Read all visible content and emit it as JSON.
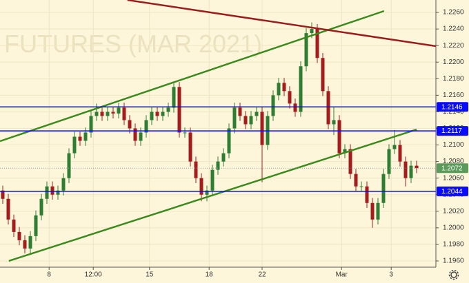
{
  "chart_data": {
    "type": "candlestick",
    "watermark": "FUTURES (MAR 2021)",
    "up_color": "#2e7d32",
    "down_color": "#a51c1c",
    "open": [
      1.2045,
      1.2035,
      1.201,
      1.1995,
      1.1985,
      1.1975,
      1.199,
      1.2015,
      1.2035,
      1.205,
      1.204,
      1.2045,
      1.206,
      1.209,
      1.211,
      1.2105,
      1.2115,
      1.2135,
      1.214,
      1.2135,
      1.214,
      1.2138,
      1.2145,
      1.213,
      1.212,
      1.2105,
      1.2115,
      1.213,
      1.214,
      1.2135,
      1.214,
      1.2145,
      1.217,
      1.2115,
      1.2115,
      1.208,
      1.206,
      1.204,
      1.2045,
      1.207,
      1.208,
      1.209,
      1.212,
      1.2145,
      1.2135,
      1.2125,
      1.2135,
      1.214,
      1.21,
      1.2135,
      1.216,
      1.2175,
      1.2165,
      1.215,
      1.214,
      1.2195,
      1.2235,
      1.224,
      1.2205,
      1.2165,
      1.2125,
      1.213,
      1.209,
      1.2095,
      1.2065,
      1.205,
      1.205,
      1.203,
      1.201,
      1.203,
      1.2065,
      1.2095,
      1.21,
      1.208,
      1.206,
      1.2075
    ],
    "high": [
      1.2051,
      1.2041,
      1.2016,
      1.2001,
      1.1991,
      1.1996,
      1.2021,
      1.2041,
      1.2056,
      1.2056,
      1.2051,
      1.2066,
      1.2096,
      1.2116,
      1.2116,
      1.2121,
      1.2141,
      1.215,
      1.2146,
      1.2146,
      1.2146,
      1.2151,
      1.2151,
      1.2136,
      1.2126,
      1.2121,
      1.2136,
      1.2146,
      1.2146,
      1.2146,
      1.2151,
      1.2176,
      1.2176,
      1.2121,
      1.2121,
      1.2086,
      1.2066,
      1.2051,
      1.2076,
      1.2086,
      1.2096,
      1.2126,
      1.2151,
      1.2151,
      1.2141,
      1.2141,
      1.2146,
      1.2146,
      1.2141,
      1.2166,
      1.2181,
      1.2181,
      1.2171,
      1.2156,
      1.2201,
      1.2241,
      1.2248,
      1.2246,
      1.2211,
      1.2171,
      1.2146,
      1.2136,
      1.2101,
      1.2101,
      1.2071,
      1.2056,
      1.2056,
      1.2036,
      1.2036,
      1.2071,
      1.2101,
      1.2118,
      1.2106,
      1.2086,
      1.2081,
      1.2081
    ],
    "low": [
      1.2029,
      1.2004,
      1.1989,
      1.1979,
      1.1969,
      1.1969,
      1.1984,
      1.2009,
      1.2029,
      1.2034,
      1.2034,
      1.2039,
      1.2054,
      1.2084,
      1.2099,
      1.2099,
      1.2109,
      1.2129,
      1.2129,
      1.2129,
      1.2132,
      1.2132,
      1.2124,
      1.2114,
      1.2099,
      1.2099,
      1.2109,
      1.2124,
      1.2129,
      1.2129,
      1.2134,
      1.2139,
      1.2109,
      1.2109,
      1.2074,
      1.2054,
      1.2032,
      1.2032,
      1.2039,
      1.2064,
      1.2074,
      1.2084,
      1.2114,
      1.2129,
      1.2119,
      1.2119,
      1.2129,
      1.2055,
      1.2094,
      1.2129,
      1.2154,
      1.2159,
      1.2144,
      1.2134,
      1.2134,
      1.2189,
      1.2229,
      1.2199,
      1.2159,
      1.2119,
      1.2112,
      1.2084,
      1.2084,
      1.2059,
      1.2044,
      1.2044,
      1.2024,
      1.2,
      1.2004,
      1.2024,
      1.2059,
      1.2089,
      1.2074,
      1.205,
      1.2054,
      1.2066
    ],
    "close": [
      1.2035,
      1.201,
      1.1995,
      1.1985,
      1.1975,
      1.199,
      1.2015,
      1.2035,
      1.205,
      1.204,
      1.2045,
      1.206,
      1.209,
      1.211,
      1.2105,
      1.2115,
      1.2135,
      1.214,
      1.2135,
      1.214,
      1.2138,
      1.2145,
      1.213,
      1.212,
      1.2105,
      1.2115,
      1.213,
      1.214,
      1.2135,
      1.214,
      1.2145,
      1.217,
      1.2115,
      1.2115,
      1.208,
      1.206,
      1.204,
      1.2045,
      1.207,
      1.208,
      1.209,
      1.212,
      1.2145,
      1.2135,
      1.2125,
      1.2135,
      1.214,
      1.21,
      1.2135,
      1.216,
      1.2175,
      1.2165,
      1.215,
      1.214,
      1.2195,
      1.2235,
      1.224,
      1.2205,
      1.2165,
      1.2125,
      1.213,
      1.209,
      1.2095,
      1.2065,
      1.205,
      1.205,
      1.203,
      1.201,
      1.203,
      1.2065,
      1.2095,
      1.21,
      1.208,
      1.206,
      1.2075,
      1.2072
    ],
    "xlim": [
      -0.5,
      78.5
    ],
    "xticks": [
      {
        "value": 8.4,
        "label": "8"
      },
      {
        "value": 16.4,
        "label": "12:00"
      },
      {
        "value": 26.6,
        "label": "15"
      },
      {
        "value": 37.4,
        "label": "18"
      },
      {
        "value": 47.0,
        "label": "22"
      },
      {
        "value": 61.4,
        "label": "Mar"
      },
      {
        "value": 70.4,
        "label": "3"
      }
    ],
    "ylim": [
      1.19525,
      1.2275
    ],
    "yticks": [
      {
        "value": 1.196,
        "label": "1.1960"
      },
      {
        "value": 1.198,
        "label": "1.1980"
      },
      {
        "value": 1.2,
        "label": "1.2000"
      },
      {
        "value": 1.202,
        "label": "1.2020"
      },
      {
        "value": 1.204,
        "label": "1.2040"
      },
      {
        "value": 1.206,
        "label": "1.2060"
      },
      {
        "value": 1.208,
        "label": "1.2080"
      },
      {
        "value": 1.21,
        "label": "1.2100"
      },
      {
        "value": 1.212,
        "label": "1.2120"
      },
      {
        "value": 1.214,
        "label": "1.2140"
      },
      {
        "value": 1.216,
        "label": "1.2160"
      },
      {
        "value": 1.218,
        "label": "1.2180"
      },
      {
        "value": 1.22,
        "label": "1.2200"
      },
      {
        "value": 1.222,
        "label": "1.2220"
      },
      {
        "value": 1.224,
        "label": "1.2240"
      },
      {
        "value": 1.226,
        "label": "1.2260"
      }
    ],
    "grid": true,
    "levels": [
      {
        "value": 1.2146,
        "color": "#0a0aff"
      },
      {
        "value": 1.2117,
        "color": "#0a0aff"
      },
      {
        "value": 1.2044,
        "color": "#0a0aff"
      }
    ],
    "last_price": {
      "value": 1.2072,
      "color": "#5a9a5a"
    },
    "trend_lines": [
      {
        "color": "#3c8a1e",
        "x": [
          -0.5,
          69.1
        ],
        "y": [
          1.21046,
          1.22617
        ]
      },
      {
        "color": "#3c8a1e",
        "x": [
          1.1,
          75.0
        ],
        "y": [
          1.196,
          1.21187
        ]
      },
      {
        "color": "#9b1c1c",
        "x": [
          22.6,
          78.5
        ],
        "y": [
          1.2275,
          1.22193
        ]
      }
    ]
  }
}
